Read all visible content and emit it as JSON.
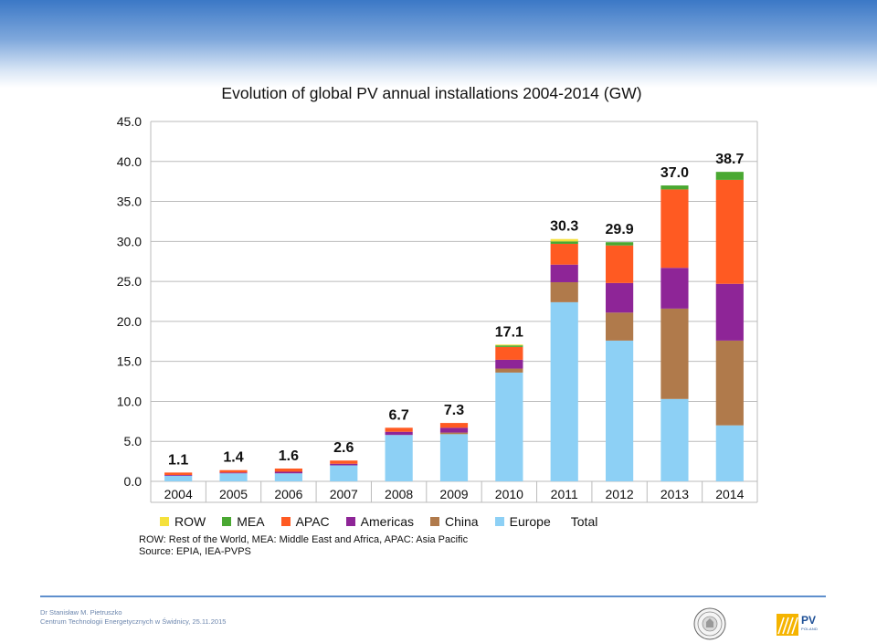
{
  "slide": {
    "footer_author": "Dr Stanisław M. Pietruszko",
    "footer_org": "Centrum Technologii Energetycznych w Świdnicy, 25.11.2015",
    "logo_text": "PV",
    "logo_subtext": "POLAND"
  },
  "notes": {
    "abbreviations": "ROW: Rest of the World, MEA: Middle East and Africa, APAC: Asia Pacific",
    "source": "Source: EPIA, IEA-PVPS"
  },
  "colors": {
    "ROW": "#f5e13c",
    "MEA": "#4aa832",
    "APAC": "#ff5a22",
    "Americas": "#8e2597",
    "China": "#b07a4b",
    "Europe": "#8dd0f5",
    "grid": "#bbbbbb"
  },
  "chart_data": {
    "type": "bar",
    "stacked": true,
    "title": "Evolution of global PV annual installations 2004-2014 (GW)",
    "xlabel": "",
    "ylabel": "",
    "ylim": [
      0,
      45
    ],
    "yticks": [
      "0.0",
      "5.0",
      "10.0",
      "15.0",
      "20.0",
      "25.0",
      "30.0",
      "35.0",
      "40.0",
      "45.0"
    ],
    "grid": true,
    "legend_position": "bottom",
    "categories": [
      "2004",
      "2005",
      "2006",
      "2007",
      "2008",
      "2009",
      "2010",
      "2011",
      "2012",
      "2013",
      "2014"
    ],
    "series": [
      {
        "name": "Europe",
        "values": [
          0.7,
          1.0,
          1.0,
          2.0,
          5.8,
          5.9,
          13.6,
          22.4,
          17.6,
          10.3,
          7.0
        ]
      },
      {
        "name": "China",
        "values": [
          0.0,
          0.0,
          0.0,
          0.0,
          0.0,
          0.2,
          0.5,
          2.5,
          3.5,
          11.3,
          10.6
        ]
      },
      {
        "name": "Americas",
        "values": [
          0.1,
          0.1,
          0.2,
          0.2,
          0.4,
          0.6,
          1.1,
          2.2,
          3.7,
          5.1,
          7.1
        ]
      },
      {
        "name": "APAC",
        "values": [
          0.3,
          0.3,
          0.4,
          0.4,
          0.5,
          0.6,
          1.6,
          2.6,
          4.7,
          9.8,
          13.0
        ]
      },
      {
        "name": "MEA",
        "values": [
          0.0,
          0.0,
          0.0,
          0.0,
          0.0,
          0.0,
          0.2,
          0.3,
          0.4,
          0.5,
          1.0
        ]
      },
      {
        "name": "ROW",
        "values": [
          0.0,
          0.0,
          0.0,
          0.0,
          0.0,
          0.0,
          0.1,
          0.3,
          0.0,
          0.0,
          0.0
        ]
      }
    ],
    "totals_series_name": "Total",
    "totals": [
      1.1,
      1.4,
      1.6,
      2.6,
      6.7,
      7.3,
      17.1,
      30.3,
      29.9,
      37.0,
      38.7
    ],
    "legend_order": [
      "ROW",
      "MEA",
      "APAC",
      "Americas",
      "China",
      "Europe",
      "Total"
    ]
  }
}
